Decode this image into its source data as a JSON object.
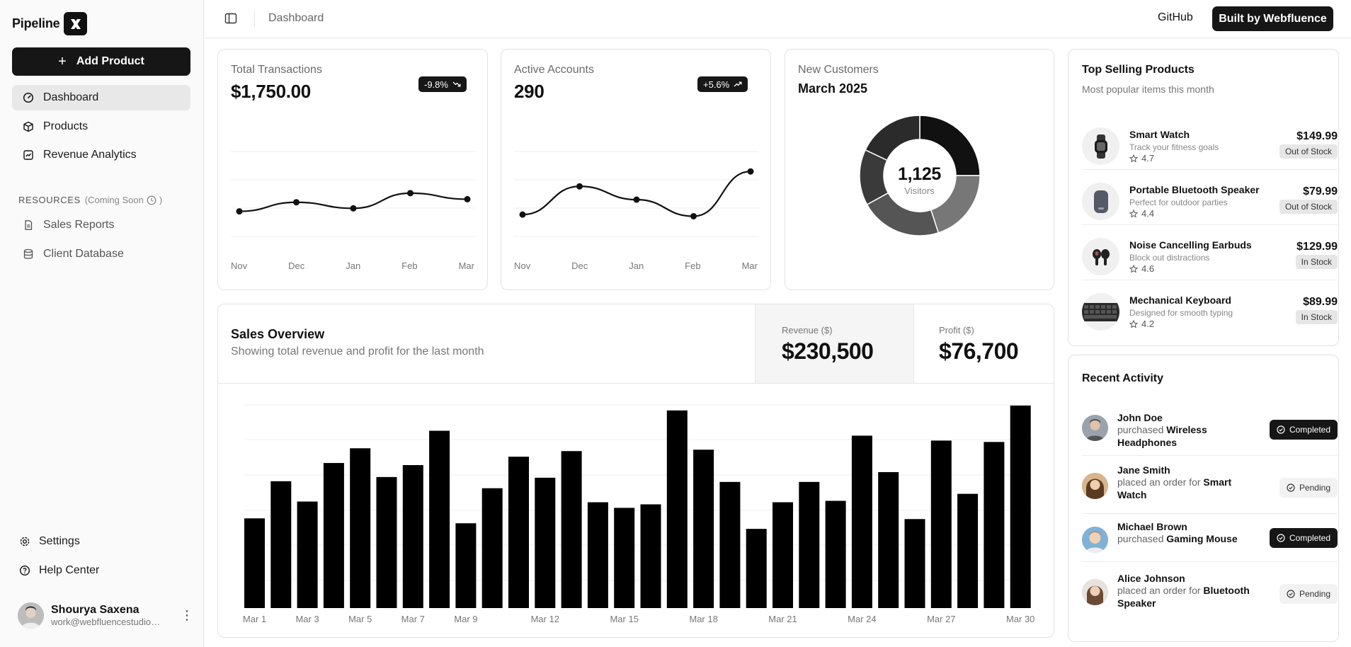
{
  "brand": {
    "name": "Pipeline"
  },
  "sidebar": {
    "add_button": "Add Product",
    "nav": [
      {
        "label": "Dashboard",
        "icon": "gauge-icon",
        "active": true
      },
      {
        "label": "Products",
        "icon": "box-icon"
      },
      {
        "label": "Revenue Analytics",
        "icon": "chart-icon"
      }
    ],
    "resources_label": "RESOURCES",
    "coming_soon": "(Coming Soon",
    "coming_soon_end": ")",
    "resources": [
      {
        "label": "Sales Reports",
        "icon": "document-icon"
      },
      {
        "label": "Client Database",
        "icon": "database-icon"
      }
    ],
    "settings": "Settings",
    "help": "Help Center",
    "user": {
      "name": "Shourya Saxena",
      "email": "work@webfluencestudio.com"
    }
  },
  "header": {
    "breadcrumb": "Dashboard",
    "github": "GitHub",
    "built_by": "Built by Webfluence"
  },
  "cards": {
    "transactions": {
      "label": "Total Transactions",
      "value": "$1,750.00",
      "badge": "-9.8%",
      "badge_icon": "trend-down-icon"
    },
    "accounts": {
      "label": "Active Accounts",
      "value": "290",
      "badge": "+5.6%",
      "badge_icon": "trend-up-icon"
    },
    "customers": {
      "label": "New Customers",
      "period": "March 2025",
      "total": "1,125",
      "caption": "Visitors"
    }
  },
  "top_selling": {
    "title": "Top Selling Products",
    "subtitle": "Most popular items this month",
    "items": [
      {
        "name": "Smart Watch",
        "desc": "Track your fitness goals",
        "rating": "4.7",
        "price": "$149.99",
        "stock": "Out of Stock"
      },
      {
        "name": "Portable Bluetooth Speaker",
        "desc": "Perfect for outdoor parties",
        "rating": "4.4",
        "price": "$79.99",
        "stock": "Out of Stock"
      },
      {
        "name": "Noise Cancelling Earbuds",
        "desc": "Block out distractions",
        "rating": "4.6",
        "price": "$129.99",
        "stock": "In Stock"
      },
      {
        "name": "Mechanical Keyboard",
        "desc": "Designed for smooth typing",
        "rating": "4.2",
        "price": "$89.99",
        "stock": "In Stock"
      }
    ]
  },
  "recent_activity": {
    "title": "Recent Activity",
    "items": [
      {
        "name": "John Doe",
        "action": "purchased",
        "item": "Wireless Headphones",
        "status": "Completed"
      },
      {
        "name": "Jane Smith",
        "action": "placed an order for",
        "item": "Smart Watch",
        "status": "Pending"
      },
      {
        "name": "Michael Brown",
        "action": "purchased",
        "item": "Gaming Mouse",
        "status": "Completed"
      },
      {
        "name": "Alice Johnson",
        "action": "placed an order for",
        "item": "Bluetooth Speaker",
        "status": "Pending"
      }
    ]
  },
  "sales_overview": {
    "title": "Sales Overview",
    "subtitle": "Showing total revenue and profit for the last month",
    "revenue_label": "Revenue ($)",
    "revenue_value": "$230,500",
    "profit_label": "Profit ($)",
    "profit_value": "$76,700"
  },
  "chart_data": [
    {
      "type": "line",
      "categories": [
        "Nov",
        "Dec",
        "Jan",
        "Feb",
        "Mar"
      ],
      "values": [
        1.2,
        1.5,
        1.3,
        1.8,
        1.6
      ]
    },
    {
      "type": "line",
      "categories": [
        "Nov",
        "Dec",
        "Jan",
        "Feb",
        "Mar"
      ],
      "values": [
        1.0,
        1.85,
        1.45,
        0.95,
        2.3
      ]
    },
    {
      "type": "pie",
      "values": [
        25,
        20,
        22,
        15,
        18
      ],
      "colors": [
        "#111111",
        "#777777",
        "#555555",
        "#3a3a3a",
        "#2b2b2b"
      ]
    },
    {
      "type": "bar",
      "x_tick_labels": [
        "Mar 1",
        "Mar 3",
        "Mar 5",
        "Mar 7",
        "Mar 9",
        "Mar 12",
        "Mar 15",
        "Mar 18",
        "Mar 21",
        "Mar 24",
        "Mar 27",
        "Mar 30"
      ],
      "values": [
        128,
        181,
        152,
        207,
        228,
        187,
        204,
        253,
        121,
        171,
        216,
        186,
        224,
        151,
        143,
        148,
        282,
        226,
        180,
        113,
        151,
        180,
        153,
        246,
        194,
        127,
        239,
        163,
        237,
        289
      ]
    }
  ]
}
